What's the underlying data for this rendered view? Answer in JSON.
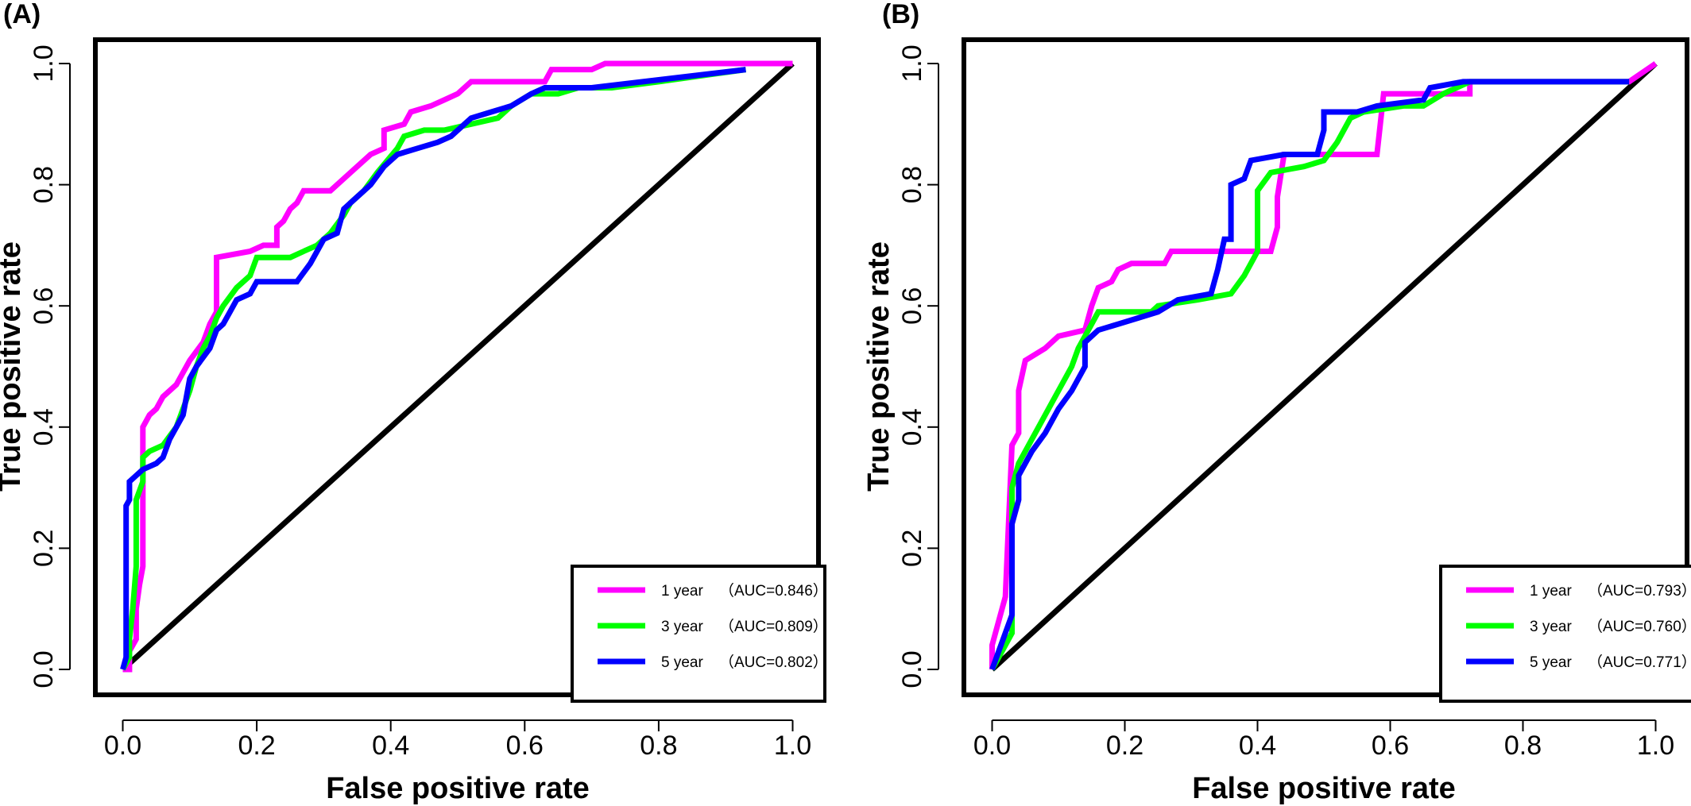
{
  "chart_data": [
    {
      "panel_label": "(A)",
      "type": "line",
      "xlabel": "False positive rate",
      "ylabel": "True positive rate",
      "xlim": [
        0,
        1
      ],
      "ylim": [
        0,
        1
      ],
      "x_ticks": [
        "0.0",
        "0.2",
        "0.4",
        "0.6",
        "0.8",
        "1.0"
      ],
      "y_ticks": [
        "0.0",
        "0.2",
        "0.4",
        "0.6",
        "0.8",
        "1.0"
      ],
      "grid": false,
      "legend_position": "bottom-right",
      "diagonal": {
        "color": "#000000",
        "points": [
          [
            0,
            0
          ],
          [
            1,
            1
          ]
        ]
      },
      "series": [
        {
          "name": "1 year",
          "auc_label": "（AUC=0.846）",
          "color": "#ff00ff",
          "points": [
            [
              0.0,
              0.0
            ],
            [
              0.01,
              0.0
            ],
            [
              0.01,
              0.03
            ],
            [
              0.02,
              0.05
            ],
            [
              0.02,
              0.1
            ],
            [
              0.025,
              0.14
            ],
            [
              0.03,
              0.17
            ],
            [
              0.03,
              0.33
            ],
            [
              0.03,
              0.4
            ],
            [
              0.04,
              0.42
            ],
            [
              0.05,
              0.43
            ],
            [
              0.06,
              0.45
            ],
            [
              0.07,
              0.46
            ],
            [
              0.08,
              0.47
            ],
            [
              0.09,
              0.49
            ],
            [
              0.1,
              0.51
            ],
            [
              0.12,
              0.54
            ],
            [
              0.13,
              0.57
            ],
            [
              0.14,
              0.59
            ],
            [
              0.14,
              0.68
            ],
            [
              0.19,
              0.69
            ],
            [
              0.21,
              0.7
            ],
            [
              0.23,
              0.7
            ],
            [
              0.23,
              0.73
            ],
            [
              0.24,
              0.74
            ],
            [
              0.25,
              0.76
            ],
            [
              0.26,
              0.77
            ],
            [
              0.27,
              0.79
            ],
            [
              0.31,
              0.79
            ],
            [
              0.34,
              0.82
            ],
            [
              0.37,
              0.85
            ],
            [
              0.39,
              0.86
            ],
            [
              0.39,
              0.89
            ],
            [
              0.42,
              0.9
            ],
            [
              0.43,
              0.92
            ],
            [
              0.46,
              0.93
            ],
            [
              0.48,
              0.94
            ],
            [
              0.5,
              0.95
            ],
            [
              0.52,
              0.97
            ],
            [
              0.58,
              0.97
            ],
            [
              0.63,
              0.97
            ],
            [
              0.64,
              0.99
            ],
            [
              0.7,
              0.99
            ],
            [
              0.72,
              1.0
            ],
            [
              1.0,
              1.0
            ]
          ]
        },
        {
          "name": "3 year",
          "auc_label": "（AUC=0.809）",
          "color": "#00ff00",
          "points": [
            [
              0.0,
              0.0
            ],
            [
              0.01,
              0.02
            ],
            [
              0.01,
              0.05
            ],
            [
              0.015,
              0.1
            ],
            [
              0.02,
              0.17
            ],
            [
              0.02,
              0.28
            ],
            [
              0.03,
              0.31
            ],
            [
              0.03,
              0.35
            ],
            [
              0.04,
              0.36
            ],
            [
              0.06,
              0.37
            ],
            [
              0.08,
              0.4
            ],
            [
              0.09,
              0.43
            ],
            [
              0.1,
              0.46
            ],
            [
              0.11,
              0.5
            ],
            [
              0.12,
              0.53
            ],
            [
              0.13,
              0.55
            ],
            [
              0.14,
              0.58
            ],
            [
              0.15,
              0.6
            ],
            [
              0.17,
              0.63
            ],
            [
              0.19,
              0.65
            ],
            [
              0.2,
              0.68
            ],
            [
              0.25,
              0.68
            ],
            [
              0.27,
              0.69
            ],
            [
              0.29,
              0.7
            ],
            [
              0.31,
              0.72
            ],
            [
              0.33,
              0.75
            ],
            [
              0.34,
              0.77
            ],
            [
              0.36,
              0.79
            ],
            [
              0.38,
              0.82
            ],
            [
              0.41,
              0.86
            ],
            [
              0.42,
              0.88
            ],
            [
              0.45,
              0.89
            ],
            [
              0.48,
              0.89
            ],
            [
              0.52,
              0.9
            ],
            [
              0.56,
              0.91
            ],
            [
              0.58,
              0.93
            ],
            [
              0.61,
              0.95
            ],
            [
              0.65,
              0.95
            ],
            [
              0.68,
              0.96
            ],
            [
              0.73,
              0.96
            ],
            [
              0.8,
              0.97
            ],
            [
              0.93,
              0.99
            ]
          ]
        },
        {
          "name": "5 year",
          "auc_label": "（AUC=0.802）",
          "color": "#0000ff",
          "points": [
            [
              0.0,
              0.0
            ],
            [
              0.005,
              0.02
            ],
            [
              0.005,
              0.08
            ],
            [
              0.005,
              0.27
            ],
            [
              0.01,
              0.28
            ],
            [
              0.01,
              0.31
            ],
            [
              0.02,
              0.32
            ],
            [
              0.03,
              0.33
            ],
            [
              0.05,
              0.34
            ],
            [
              0.06,
              0.35
            ],
            [
              0.07,
              0.38
            ],
            [
              0.09,
              0.42
            ],
            [
              0.1,
              0.48
            ],
            [
              0.11,
              0.5
            ],
            [
              0.13,
              0.53
            ],
            [
              0.14,
              0.56
            ],
            [
              0.15,
              0.57
            ],
            [
              0.16,
              0.59
            ],
            [
              0.17,
              0.61
            ],
            [
              0.19,
              0.62
            ],
            [
              0.2,
              0.64
            ],
            [
              0.26,
              0.64
            ],
            [
              0.28,
              0.67
            ],
            [
              0.3,
              0.71
            ],
            [
              0.32,
              0.72
            ],
            [
              0.33,
              0.76
            ],
            [
              0.35,
              0.78
            ],
            [
              0.37,
              0.8
            ],
            [
              0.39,
              0.83
            ],
            [
              0.41,
              0.85
            ],
            [
              0.44,
              0.86
            ],
            [
              0.47,
              0.87
            ],
            [
              0.49,
              0.88
            ],
            [
              0.52,
              0.91
            ],
            [
              0.55,
              0.92
            ],
            [
              0.58,
              0.93
            ],
            [
              0.61,
              0.95
            ],
            [
              0.63,
              0.96
            ],
            [
              0.68,
              0.96
            ],
            [
              0.7,
              0.96
            ],
            [
              0.93,
              0.99
            ]
          ]
        }
      ]
    },
    {
      "panel_label": "(B)",
      "type": "line",
      "xlabel": "False positive rate",
      "ylabel": "True positive rate",
      "xlim": [
        0,
        1
      ],
      "ylim": [
        0,
        1
      ],
      "x_ticks": [
        "0.0",
        "0.2",
        "0.4",
        "0.6",
        "0.8",
        "1.0"
      ],
      "y_ticks": [
        "0.0",
        "0.2",
        "0.4",
        "0.6",
        "0.8",
        "1.0"
      ],
      "grid": false,
      "legend_position": "bottom-right",
      "diagonal": {
        "color": "#000000",
        "points": [
          [
            0,
            0
          ],
          [
            1,
            1
          ]
        ]
      },
      "series": [
        {
          "name": "1 year",
          "auc_label": "（AUC=0.793）",
          "color": "#ff00ff",
          "points": [
            [
              0.0,
              0.0
            ],
            [
              0.0,
              0.04
            ],
            [
              0.02,
              0.12
            ],
            [
              0.03,
              0.37
            ],
            [
              0.04,
              0.39
            ],
            [
              0.04,
              0.46
            ],
            [
              0.05,
              0.51
            ],
            [
              0.08,
              0.53
            ],
            [
              0.1,
              0.55
            ],
            [
              0.14,
              0.56
            ],
            [
              0.15,
              0.6
            ],
            [
              0.16,
              0.63
            ],
            [
              0.18,
              0.64
            ],
            [
              0.19,
              0.66
            ],
            [
              0.21,
              0.67
            ],
            [
              0.26,
              0.67
            ],
            [
              0.27,
              0.69
            ],
            [
              0.42,
              0.69
            ],
            [
              0.43,
              0.73
            ],
            [
              0.43,
              0.78
            ],
            [
              0.44,
              0.85
            ],
            [
              0.58,
              0.85
            ],
            [
              0.59,
              0.95
            ],
            [
              0.72,
              0.95
            ],
            [
              0.72,
              0.97
            ],
            [
              0.96,
              0.97
            ],
            [
              1.0,
              1.0
            ]
          ]
        },
        {
          "name": "3 year",
          "auc_label": "（AUC=0.760）",
          "color": "#00ff00",
          "points": [
            [
              0.0,
              0.0
            ],
            [
              0.03,
              0.06
            ],
            [
              0.03,
              0.3
            ],
            [
              0.04,
              0.34
            ],
            [
              0.06,
              0.38
            ],
            [
              0.08,
              0.42
            ],
            [
              0.1,
              0.46
            ],
            [
              0.12,
              0.5
            ],
            [
              0.13,
              0.53
            ],
            [
              0.15,
              0.57
            ],
            [
              0.16,
              0.59
            ],
            [
              0.24,
              0.59
            ],
            [
              0.25,
              0.6
            ],
            [
              0.31,
              0.61
            ],
            [
              0.36,
              0.62
            ],
            [
              0.38,
              0.65
            ],
            [
              0.4,
              0.69
            ],
            [
              0.4,
              0.79
            ],
            [
              0.42,
              0.82
            ],
            [
              0.47,
              0.83
            ],
            [
              0.5,
              0.84
            ],
            [
              0.52,
              0.87
            ],
            [
              0.54,
              0.91
            ],
            [
              0.56,
              0.92
            ],
            [
              0.62,
              0.93
            ],
            [
              0.65,
              0.93
            ],
            [
              0.68,
              0.95
            ],
            [
              0.72,
              0.97
            ],
            [
              0.96,
              0.97
            ]
          ]
        },
        {
          "name": "5 year",
          "auc_label": "（AUC=0.771）",
          "color": "#0000ff",
          "points": [
            [
              0.0,
              0.0
            ],
            [
              0.03,
              0.09
            ],
            [
              0.03,
              0.24
            ],
            [
              0.04,
              0.28
            ],
            [
              0.04,
              0.32
            ],
            [
              0.06,
              0.36
            ],
            [
              0.08,
              0.39
            ],
            [
              0.1,
              0.43
            ],
            [
              0.12,
              0.46
            ],
            [
              0.14,
              0.5
            ],
            [
              0.14,
              0.54
            ],
            [
              0.16,
              0.56
            ],
            [
              0.19,
              0.57
            ],
            [
              0.22,
              0.58
            ],
            [
              0.25,
              0.59
            ],
            [
              0.28,
              0.61
            ],
            [
              0.33,
              0.62
            ],
            [
              0.34,
              0.66
            ],
            [
              0.35,
              0.71
            ],
            [
              0.36,
              0.71
            ],
            [
              0.36,
              0.8
            ],
            [
              0.38,
              0.81
            ],
            [
              0.39,
              0.84
            ],
            [
              0.44,
              0.85
            ],
            [
              0.49,
              0.85
            ],
            [
              0.5,
              0.89
            ],
            [
              0.5,
              0.92
            ],
            [
              0.55,
              0.92
            ],
            [
              0.58,
              0.93
            ],
            [
              0.65,
              0.94
            ],
            [
              0.66,
              0.96
            ],
            [
              0.71,
              0.97
            ],
            [
              0.96,
              0.97
            ]
          ]
        }
      ]
    }
  ]
}
